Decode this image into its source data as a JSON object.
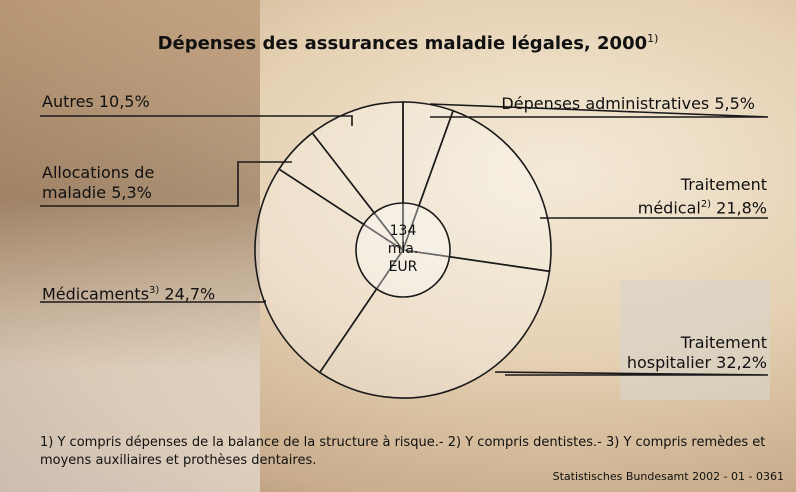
{
  "chart_data": {
    "type": "pie",
    "title": "Dépenses des assurances maladie légales, 2000",
    "title_note": "1)",
    "categories": [
      "Dépenses administratives",
      "Traitement médical",
      "Traitement hospitalier",
      "Médicaments",
      "Allocations de maladie",
      "Autres"
    ],
    "category_notes": [
      null,
      "2)",
      null,
      "3)",
      null,
      null
    ],
    "values": [
      5.5,
      21.8,
      32.2,
      24.7,
      5.3,
      10.5
    ],
    "value_labels": [
      "5,5%",
      "21,8%",
      "32,2%",
      "24,7%",
      "5,3%",
      "10,5%"
    ],
    "color": "#ffffff",
    "center_label": [
      "134",
      "mia.",
      "EUR"
    ],
    "footnote": "1) Y compris dépenses de la balance de la structure à risque.- 2)  Y compris dentistes.- 3) Y compris remèdes et moyens auxiliaires et prothèses dentaires.",
    "source": "Statistisches Bundesamt 2002 - 01 - 0361"
  }
}
